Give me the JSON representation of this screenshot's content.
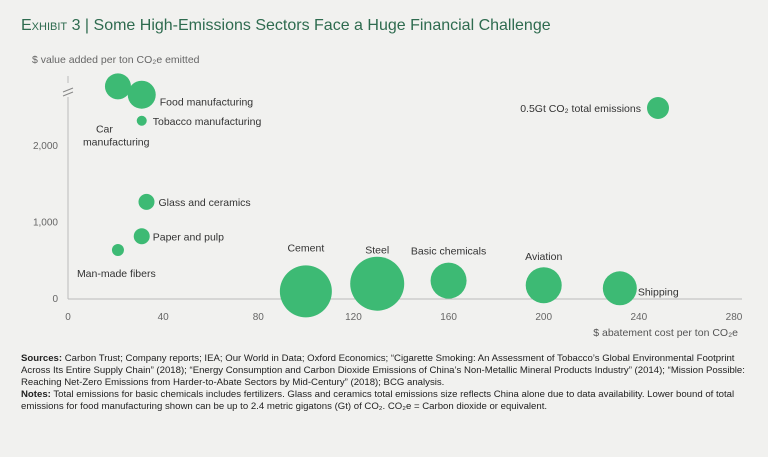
{
  "header": {
    "exhibit": "Exhibit 3",
    "separator": " | ",
    "title": "Some High-Emissions Sectors Face a Huge Financial Challenge"
  },
  "chart_data": {
    "type": "scatter",
    "xlabel": "$ abatement cost per ton CO₂e",
    "ylabel": "$ value added per ton CO₂e emitted",
    "xlim": [
      0,
      280
    ],
    "ylim": [
      0,
      2700
    ],
    "x_ticks": [
      0,
      40,
      80,
      120,
      160,
      200,
      240,
      280
    ],
    "y_ticks": [
      0,
      1000,
      2000
    ],
    "y_tick_labels": [
      "0",
      "1,000",
      "2,000"
    ],
    "y_axis_break": true,
    "bubble_color": "#3dba74",
    "size_legend": "0.5Gt CO₂ total emissions",
    "points": [
      {
        "label": "Car manufacturing",
        "x": 21,
        "y": 2780
      },
      {
        "label": "Food manufacturing",
        "x": 31,
        "y": 2670
      },
      {
        "label": "Tobacco manufacturing",
        "x": 31,
        "y": 2330
      },
      {
        "label": "Glass and ceramics",
        "x": 33,
        "y": 1270
      },
      {
        "label": "Paper and pulp",
        "x": 31,
        "y": 820
      },
      {
        "label": "Man-made fibers",
        "x": 21,
        "y": 640
      },
      {
        "label": "Cement",
        "x": 100,
        "y": 100
      },
      {
        "label": "Steel",
        "x": 130,
        "y": 200
      },
      {
        "label": "Basic chemicals",
        "x": 160,
        "y": 240
      },
      {
        "label": "Aviation",
        "x": 200,
        "y": 180
      },
      {
        "label": "Shipping",
        "x": 232,
        "y": 140
      }
    ]
  },
  "notes": {
    "sources_label": "Sources:",
    "sources_text": "Carbon Trust; Company reports; IEA; Our World in Data; Oxford Economics; “Cigarette Smoking: An Assessment of Tobacco’s Global Environmental Footprint Across Its Entire Supply Chain” (2018); “Energy Consumption and Carbon Dioxide Emissions of China’s Non-Metallic Mineral Products Industry” (2014); “Mission Possible: Reaching Net-Zero Emissions from Harder-to-Abate Sectors by Mid-Century” (2018); BCG analysis.",
    "notes_label": "Notes:",
    "notes_text": "Total emissions for basic chemicals includes fertilizers. Glass and ceramics total emissions size reflects China alone due to data availability. Lower bound of total emissions for food manufacturing shown can be up to 2.4 metric gigatons (Gt) of CO₂. CO₂e = Carbon dioxide or equivalent."
  }
}
